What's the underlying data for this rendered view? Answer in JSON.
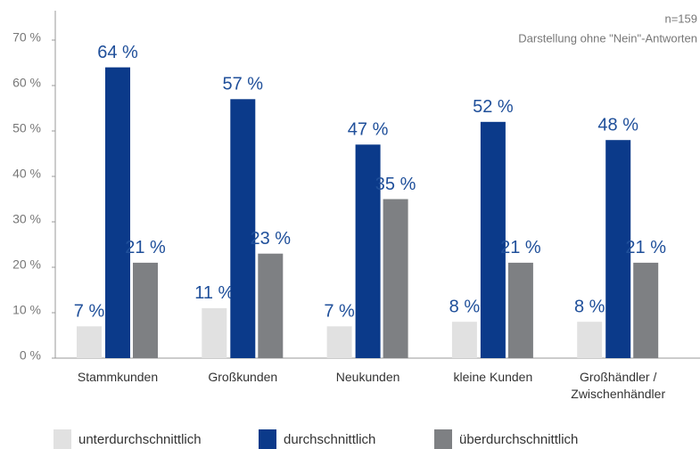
{
  "chart_data": {
    "type": "bar",
    "annotations": [
      "n=159",
      "Darstellung ohne \"Nein\"-Antworten"
    ],
    "categories": [
      "Stammkunden",
      "Großkunden",
      "Neukunden",
      "kleine Kunden",
      "Großhändler /\nZwischenhändler"
    ],
    "series": [
      {
        "name": "unterdurchschnittlich",
        "color": "#e1e1e1",
        "values": [
          7,
          11,
          7,
          8,
          8
        ],
        "value_labels": [
          "7 %",
          "11 %",
          "7 %",
          "8 %",
          "8 %"
        ]
      },
      {
        "name": "durchschnittlich",
        "color": "#0b3a8a",
        "values": [
          64,
          57,
          47,
          52,
          48
        ],
        "value_labels": [
          "64 %",
          "57 %",
          "47 %",
          "52 %",
          "48 %"
        ]
      },
      {
        "name": "überdurchschnittlich",
        "color": "#7e8083",
        "values": [
          21,
          23,
          35,
          21,
          21
        ],
        "value_labels": [
          "21 %",
          "23 %",
          "35 %",
          "21 %",
          "21 %"
        ]
      }
    ],
    "ylim": [
      0,
      70
    ],
    "yticks": [
      {
        "value": 0,
        "label": "0 %"
      },
      {
        "value": 10,
        "label": "10 %"
      },
      {
        "value": 20,
        "label": "20 %"
      },
      {
        "value": 30,
        "label": "30 %"
      },
      {
        "value": 40,
        "label": "40 %"
      },
      {
        "value": 50,
        "label": "50 %"
      },
      {
        "value": 60,
        "label": "60 %"
      },
      {
        "value": 70,
        "label": "70 %"
      }
    ],
    "legend": "bottom",
    "value_label_color": "#1f4f9a"
  }
}
